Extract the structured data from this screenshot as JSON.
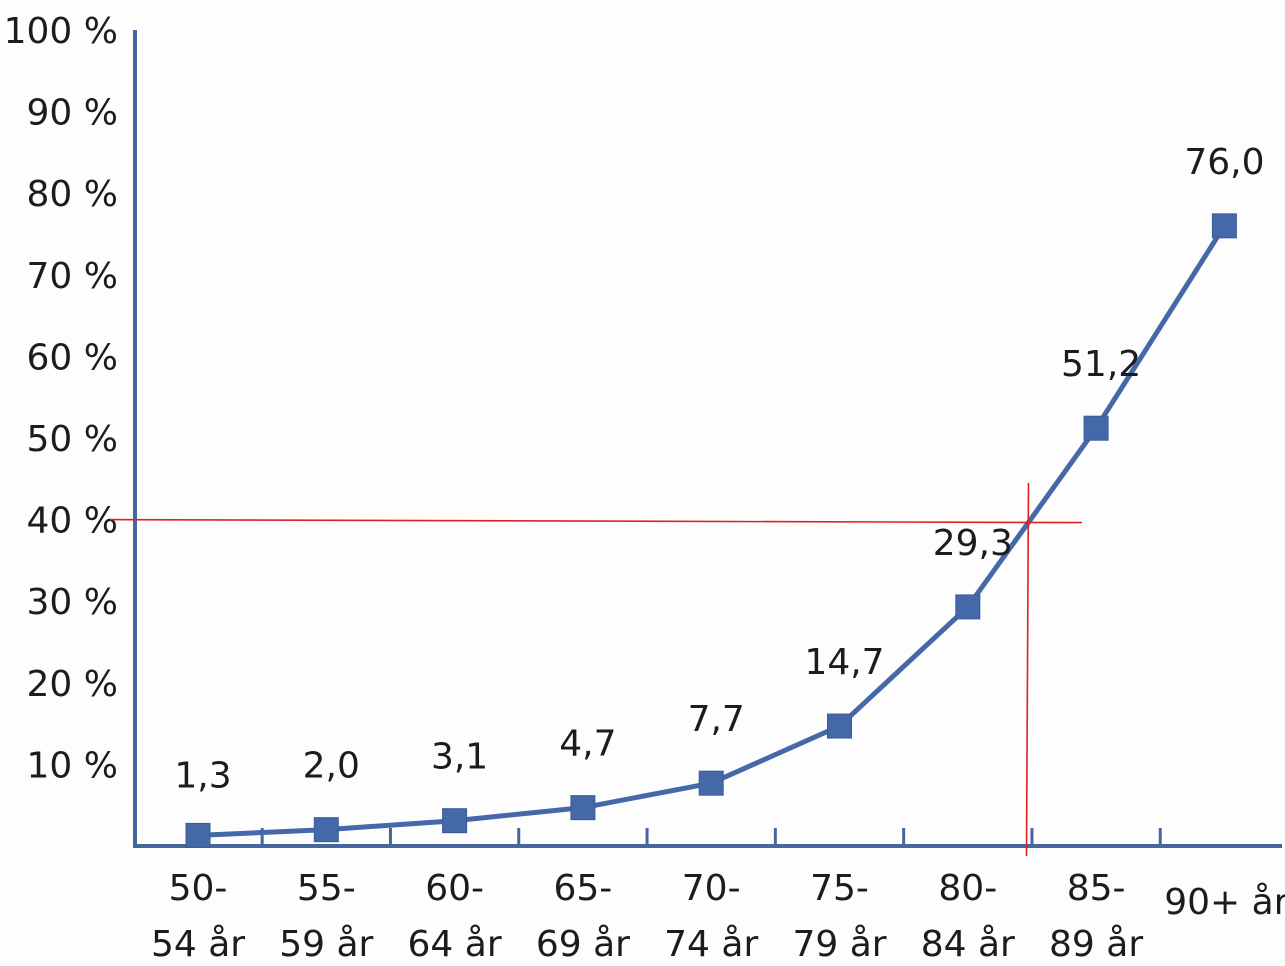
{
  "chart_data": {
    "type": "line",
    "title": "",
    "xlabel": "",
    "ylabel": "",
    "ylim": [
      0,
      100
    ],
    "y_ticks": [
      "10 %",
      "20 %",
      "30 %",
      "40 %",
      "50 %",
      "60 %",
      "70 %",
      "80 %",
      "90 %",
      "100 %"
    ],
    "categories": [
      [
        "50-",
        "54 år"
      ],
      [
        "55-",
        "59 år"
      ],
      [
        "60-",
        "64 år"
      ],
      [
        "65-",
        "69 år"
      ],
      [
        "70-",
        "74 år"
      ],
      [
        "75-",
        "79 år"
      ],
      [
        "80-",
        "84 år"
      ],
      [
        "85-",
        "89 år"
      ],
      [
        "90+ år"
      ]
    ],
    "series": [
      {
        "values": [
          1.3,
          2.0,
          3.1,
          4.7,
          7.7,
          14.7,
          29.3,
          51.2,
          76.0
        ],
        "data_labels": [
          "1,3",
          "2,0",
          "3,1",
          "4,7",
          "7,7",
          "14,7",
          "29,3",
          "51,2",
          "76,0"
        ],
        "color": "#4468a8"
      }
    ],
    "grid": false,
    "annotations": {
      "reference_line_y": 40,
      "reference_line_x_category": "between 80-84 år and 85-89 år",
      "color": "#e02020"
    }
  }
}
